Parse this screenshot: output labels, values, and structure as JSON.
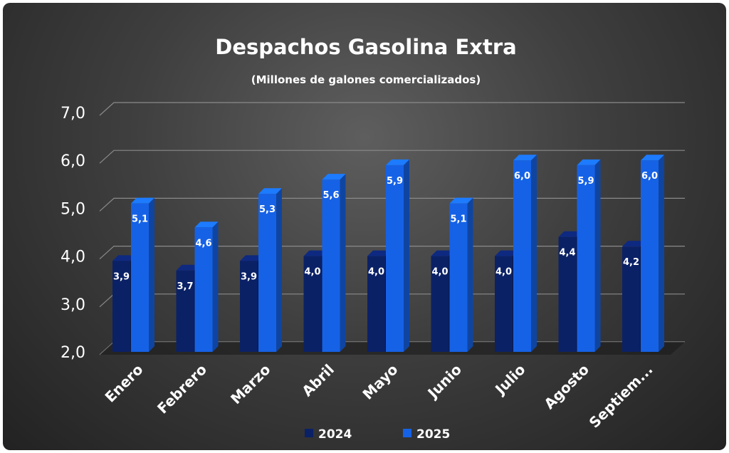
{
  "chart_data": {
    "type": "bar",
    "title": "Despachos Gasolina Extra",
    "subtitle": "(Millones de galones comercializados)",
    "xlabel": "",
    "ylabel": "",
    "ylim": [
      2.0,
      7.0
    ],
    "yticks": [
      "2,0",
      "3,0",
      "4,0",
      "5,0",
      "6,0",
      "7,0"
    ],
    "grid": true,
    "legend_position": "bottom",
    "categories": [
      "Enero",
      "Febrero",
      "Marzo",
      "Abril",
      "Mayo",
      "Junio",
      "Julio",
      "Agosto",
      "Septiem..."
    ],
    "series": [
      {
        "name": "2024",
        "color": "#0b2166",
        "values": [
          3.9,
          3.7,
          3.9,
          4.0,
          4.0,
          4.0,
          4.0,
          4.4,
          4.2
        ],
        "labels": [
          "3,9",
          "3,7",
          "3,9",
          "4,0",
          "4,0",
          "4,0",
          "4,0",
          "4,4",
          "4,2"
        ]
      },
      {
        "name": "2025",
        "color": "#1662e6",
        "values": [
          5.1,
          4.6,
          5.3,
          5.6,
          5.9,
          5.1,
          6.0,
          5.9,
          6.0
        ],
        "labels": [
          "5,1",
          "4,6",
          "5,3",
          "5,6",
          "5,9",
          "5,1",
          "6,0",
          "5,9",
          "6,0"
        ]
      }
    ]
  }
}
